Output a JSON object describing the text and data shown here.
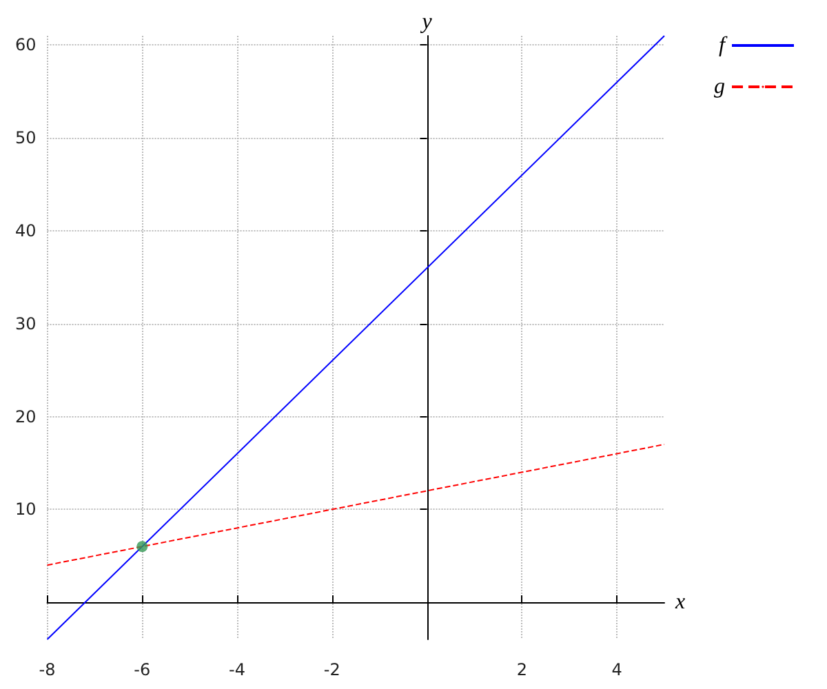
{
  "chart_data": {
    "type": "line",
    "xlabel": "x",
    "ylabel": "y",
    "xlim": [
      -8,
      5
    ],
    "ylim": [
      -4,
      61
    ],
    "xticks": [
      -8,
      -6,
      -4,
      -2,
      2,
      4
    ],
    "yticks": [
      10,
      20,
      30,
      40,
      50,
      60
    ],
    "grid": true,
    "legend": "top right",
    "series": [
      {
        "name": "f",
        "color": "#0000ff",
        "line_style": "solid",
        "x": [
          -8,
          5
        ],
        "values": [
          -4,
          61
        ]
      },
      {
        "name": "g",
        "color": "#ff0000",
        "line_style": "dashed",
        "x": [
          -8,
          5
        ],
        "values": [
          4,
          17
        ]
      },
      {
        "type": "scatter",
        "color": "#339955",
        "marker": "circle",
        "x": [
          -6
        ],
        "values": [
          6
        ]
      }
    ]
  }
}
